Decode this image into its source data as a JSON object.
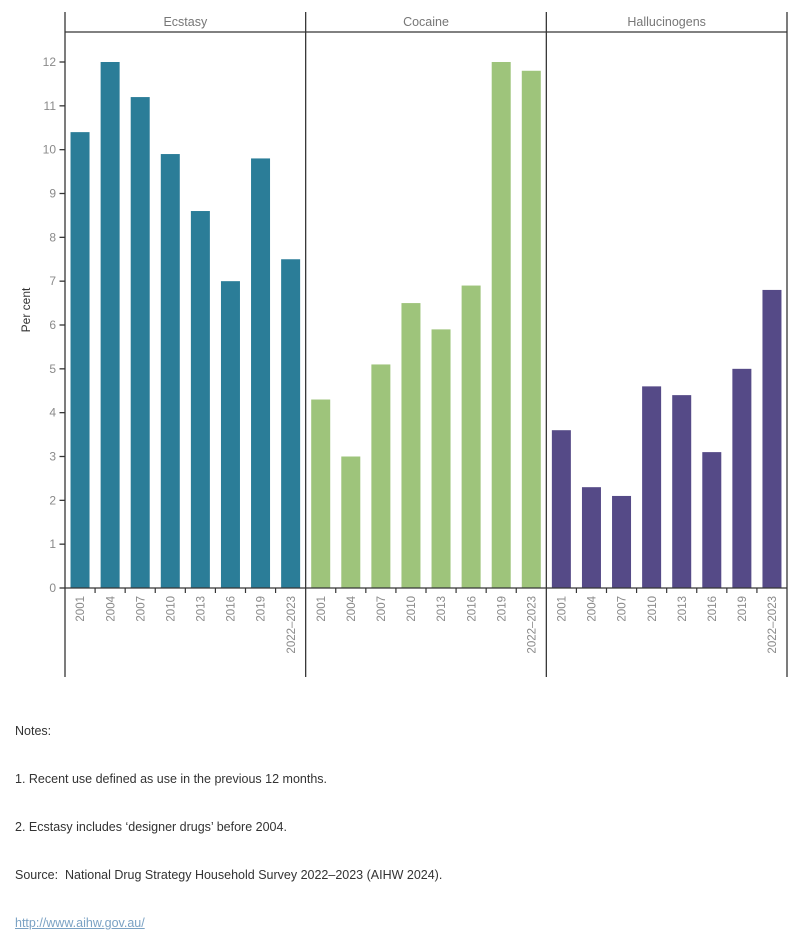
{
  "chart_data": {
    "type": "bar",
    "title": "",
    "ylabel": "Per cent",
    "xlabel": "",
    "ylim": [
      0,
      12
    ],
    "ytick_interval": 1,
    "yticks": [
      0,
      1,
      2,
      3,
      4,
      5,
      6,
      7,
      8,
      9,
      10,
      11,
      12
    ],
    "grid": false,
    "legend_position": "none",
    "facet_headers": [
      "Ecstasy",
      "Cocaine",
      "Hallucinogens"
    ],
    "categories": [
      "2001",
      "2004",
      "2007",
      "2010",
      "2013",
      "2016",
      "2019",
      "2022–2023"
    ],
    "series": [
      {
        "name": "Ecstasy",
        "color": "#2b7d98",
        "values": [
          10.4,
          12.0,
          11.2,
          9.9,
          8.6,
          7.0,
          9.8,
          7.5
        ]
      },
      {
        "name": "Cocaine",
        "color": "#9ec47b",
        "values": [
          4.3,
          3.0,
          5.1,
          6.5,
          5.9,
          6.9,
          12.0,
          11.8
        ]
      },
      {
        "name": "Hallucinogens",
        "color": "#554a87",
        "values": [
          3.6,
          2.3,
          2.1,
          4.6,
          4.4,
          3.1,
          5.0,
          6.8
        ]
      }
    ]
  },
  "notes": {
    "title": "Notes:",
    "note1": "1. Recent use defined as use in the previous 12 months.",
    "note2": "2. Ecstasy includes ‘designer drugs’ before 2004.",
    "source": "Source:  National Drug Strategy Household Survey 2022–2023 (AIHW 2024).",
    "link": "http://www.aihw.gov.au/"
  },
  "colors": {
    "axis_line": "#363636",
    "tick_label": "#8a8a8a",
    "panel_header": "#777777",
    "axis_title": "#333333",
    "notes_text": "#333333",
    "link": "#7ba2c4",
    "background": "#ffffff"
  }
}
